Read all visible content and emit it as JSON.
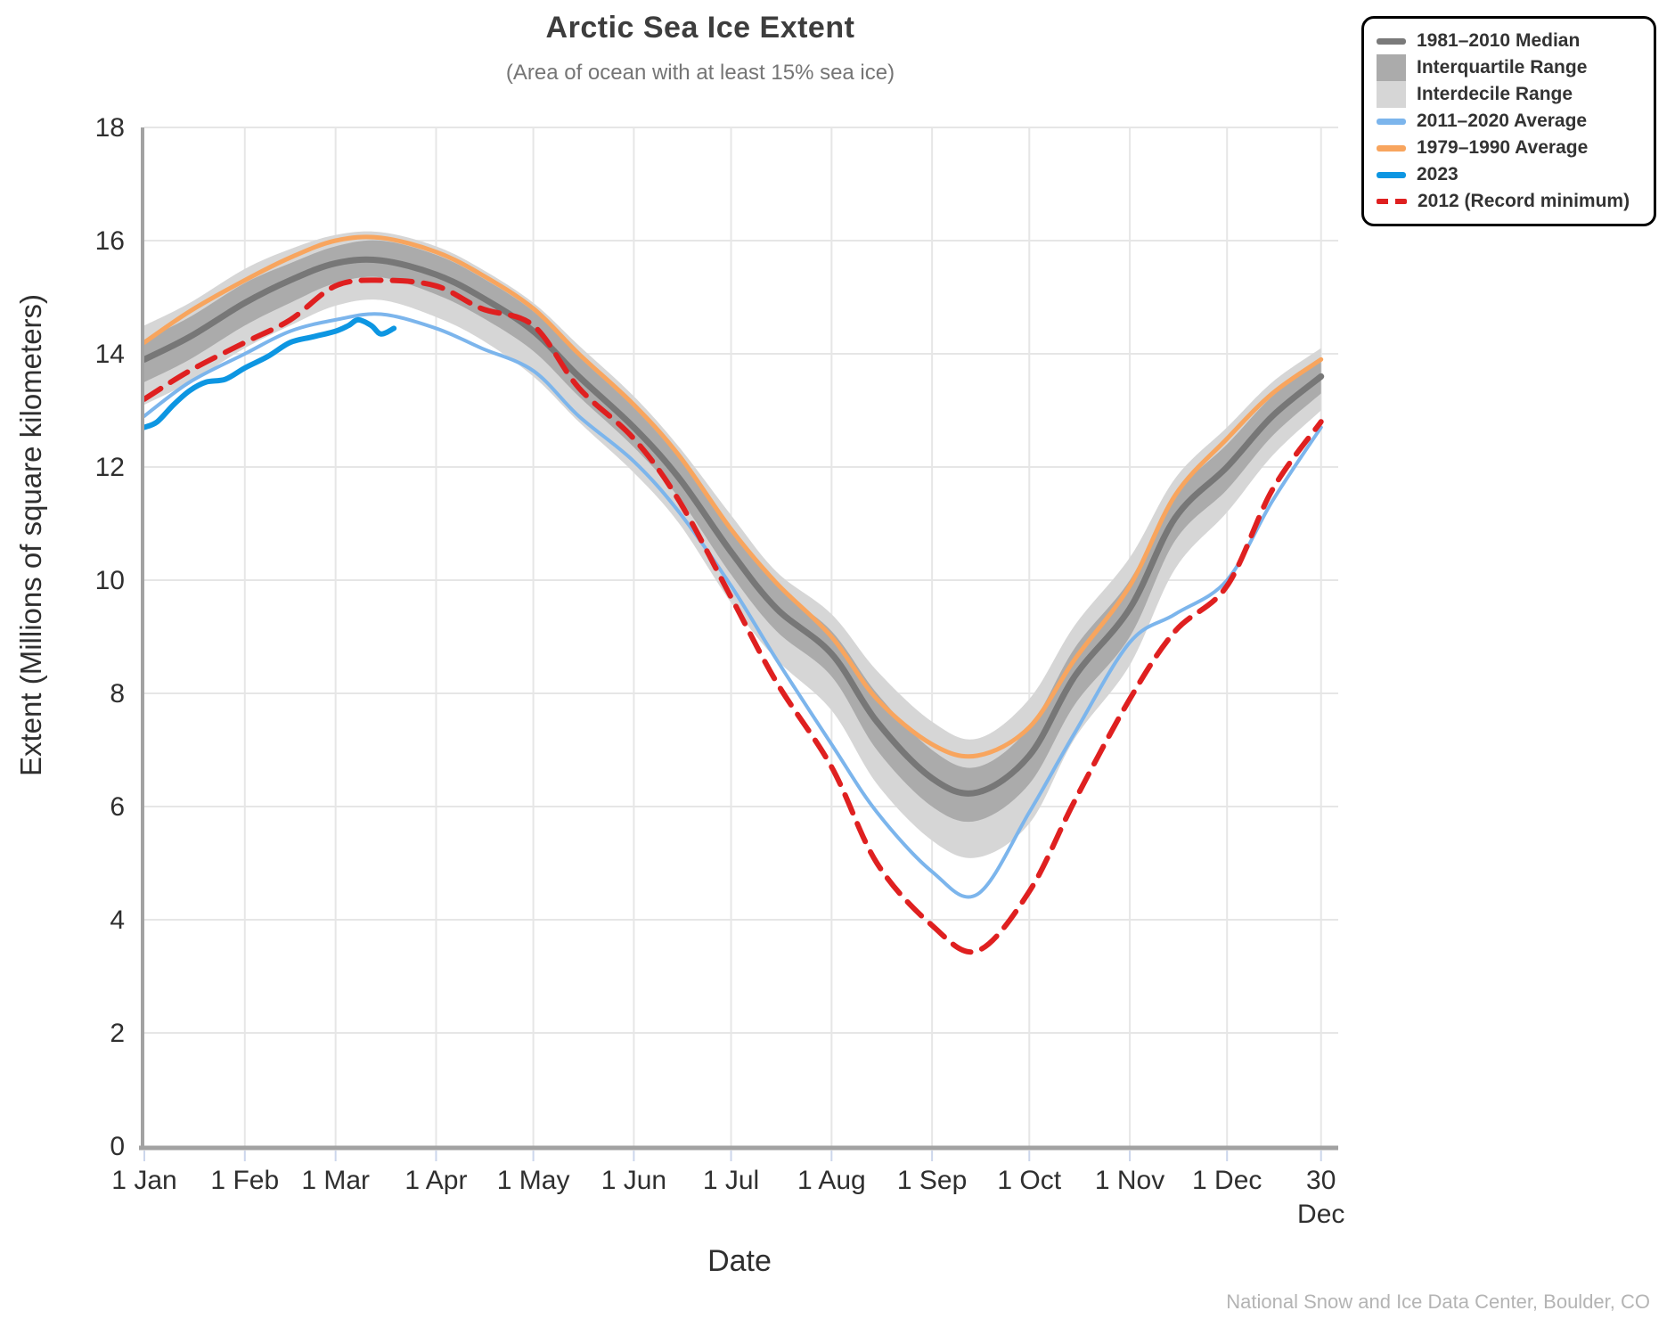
{
  "header": {
    "title": "Arctic Sea Ice Extent",
    "subtitle": "(Area of ocean with at least 15% sea ice)"
  },
  "footer": {
    "credit": "National Snow and Ice Data Center, Boulder, CO"
  },
  "axes": {
    "y_title": "Extent (Millions of square kilometers)",
    "x_title": "Date",
    "y_ticks": [
      0,
      2,
      4,
      6,
      8,
      10,
      12,
      14,
      16,
      18
    ],
    "x_ticks": [
      {
        "day": 1,
        "label": "1 Jan"
      },
      {
        "day": 32,
        "label": "1 Feb"
      },
      {
        "day": 60,
        "label": "1 Mar"
      },
      {
        "day": 91,
        "label": "1 Apr"
      },
      {
        "day": 121,
        "label": "1 May"
      },
      {
        "day": 152,
        "label": "1 Jun"
      },
      {
        "day": 182,
        "label": "1 Jul"
      },
      {
        "day": 213,
        "label": "1 Aug"
      },
      {
        "day": 244,
        "label": "1 Sep"
      },
      {
        "day": 274,
        "label": "1 Oct"
      },
      {
        "day": 305,
        "label": "1 Nov"
      },
      {
        "day": 335,
        "label": "1 Dec"
      },
      {
        "day": 364,
        "label": "30",
        "label2": "Dec"
      }
    ]
  },
  "legend": {
    "items": [
      {
        "label": "1981–2010 Median",
        "swatch": "line",
        "color": "#7a7a7a"
      },
      {
        "label": "Interquartile Range",
        "swatch": "box",
        "color": "#ababab"
      },
      {
        "label": "Interdecile Range",
        "swatch": "box",
        "color": "#d6d6d6"
      },
      {
        "label": "2011–2020 Average",
        "swatch": "line",
        "color": "#7cb5ec"
      },
      {
        "label": "1979–1990 Average",
        "swatch": "line",
        "color": "#f8a55e"
      },
      {
        "label": "2023",
        "swatch": "line",
        "color": "#0d96e2"
      },
      {
        "label": "2012 (Record minimum)",
        "swatch": "dash",
        "color": "#df2020"
      }
    ]
  },
  "colors": {
    "grid": "#e6e6e6",
    "axis_line": "#a2a2a2",
    "tick_mark": "#ccd6eb",
    "tick_label": "#2f2f2f"
  },
  "chart_data": {
    "type": "line",
    "title": "Arctic Sea Ice Extent",
    "subtitle": "(Area of ocean with at least 15% sea ice)",
    "xlabel": "Date",
    "ylabel": "Extent (Millions of square kilometers)",
    "x_unit": "day_of_year",
    "ylim": [
      0,
      18
    ],
    "grid": true,
    "legend_position": "top-right",
    "days": [
      1,
      15,
      32,
      46,
      60,
      74,
      91,
      105,
      121,
      135,
      152,
      166,
      182,
      196,
      213,
      227,
      244,
      258,
      274,
      288,
      305,
      319,
      335,
      349,
      364
    ],
    "series": [
      {
        "name": "Interdecile Range",
        "type": "band",
        "color": "#d6d6d6",
        "upper": [
          14.5,
          14.9,
          15.5,
          15.85,
          16.1,
          16.15,
          15.9,
          15.5,
          14.9,
          14.15,
          13.25,
          12.35,
          11.15,
          10.15,
          9.4,
          8.4,
          7.5,
          7.2,
          7.9,
          9.2,
          10.4,
          11.8,
          12.7,
          13.5,
          14.1
        ],
        "lower": [
          13.1,
          13.5,
          14.1,
          14.5,
          14.85,
          14.95,
          14.65,
          14.25,
          13.6,
          12.8,
          11.9,
          11.0,
          9.6,
          8.6,
          7.7,
          6.4,
          5.4,
          5.1,
          5.7,
          7.2,
          8.5,
          10.2,
          11.2,
          12.2,
          13.0
        ]
      },
      {
        "name": "Interquartile Range",
        "type": "band",
        "color": "#ababab",
        "upper": [
          14.25,
          14.65,
          15.25,
          15.6,
          15.9,
          16.0,
          15.75,
          15.35,
          14.75,
          13.95,
          13.05,
          12.15,
          10.9,
          9.9,
          9.1,
          8.0,
          7.0,
          6.7,
          7.4,
          8.8,
          10.0,
          11.5,
          12.4,
          13.25,
          13.9
        ],
        "lower": [
          13.5,
          13.9,
          14.5,
          14.9,
          15.25,
          15.35,
          15.05,
          14.65,
          14.05,
          13.25,
          12.35,
          11.45,
          10.1,
          9.1,
          8.3,
          7.0,
          6.0,
          5.75,
          6.4,
          7.8,
          9.0,
          10.7,
          11.6,
          12.55,
          13.3
        ]
      },
      {
        "name": "1981–2010 Median",
        "type": "line",
        "color": "#777777",
        "width": 7,
        "values": [
          13.9,
          14.3,
          14.9,
          15.3,
          15.6,
          15.65,
          15.4,
          15.0,
          14.4,
          13.6,
          12.7,
          11.8,
          10.5,
          9.5,
          8.7,
          7.5,
          6.5,
          6.25,
          6.9,
          8.3,
          9.5,
          11.1,
          12.0,
          12.9,
          13.6
        ]
      },
      {
        "name": "1979–1990 Average",
        "type": "line",
        "color": "#f8a55e",
        "width": 5,
        "values": [
          14.2,
          14.75,
          15.3,
          15.7,
          16.0,
          16.05,
          15.8,
          15.4,
          14.8,
          14.0,
          13.1,
          12.2,
          10.9,
          9.95,
          9.0,
          7.9,
          7.1,
          6.9,
          7.4,
          8.6,
          9.9,
          11.5,
          12.5,
          13.3,
          13.9
        ]
      },
      {
        "name": "2011–2020 Average",
        "type": "line",
        "color": "#7cb5ec",
        "width": 4,
        "values": [
          12.9,
          13.5,
          14.0,
          14.4,
          14.6,
          14.7,
          14.45,
          14.1,
          13.7,
          12.9,
          12.1,
          11.2,
          9.9,
          8.6,
          7.1,
          5.9,
          4.85,
          4.45,
          5.9,
          7.3,
          8.9,
          9.4,
          10.0,
          11.4,
          12.7
        ]
      },
      {
        "name": "2012 (Record minimum)",
        "type": "line",
        "color": "#df2020",
        "width": 6,
        "dash": "22 13",
        "values": [
          13.2,
          13.7,
          14.2,
          14.6,
          15.2,
          15.3,
          15.2,
          14.8,
          14.5,
          13.4,
          12.5,
          11.4,
          9.7,
          8.2,
          6.7,
          5.0,
          3.9,
          3.45,
          4.5,
          6.1,
          7.9,
          9.1,
          9.9,
          11.6,
          12.8
        ]
      },
      {
        "name": "2023",
        "type": "line",
        "color": "#0d96e2",
        "width": 6,
        "days": [
          1,
          5,
          10,
          15,
          20,
          26,
          32,
          39,
          46,
          53,
          60,
          64,
          67,
          71,
          74,
          78
        ],
        "values": [
          12.7,
          12.8,
          13.1,
          13.35,
          13.5,
          13.55,
          13.75,
          13.95,
          14.2,
          14.3,
          14.4,
          14.5,
          14.6,
          14.5,
          14.35,
          14.45
        ]
      }
    ]
  }
}
